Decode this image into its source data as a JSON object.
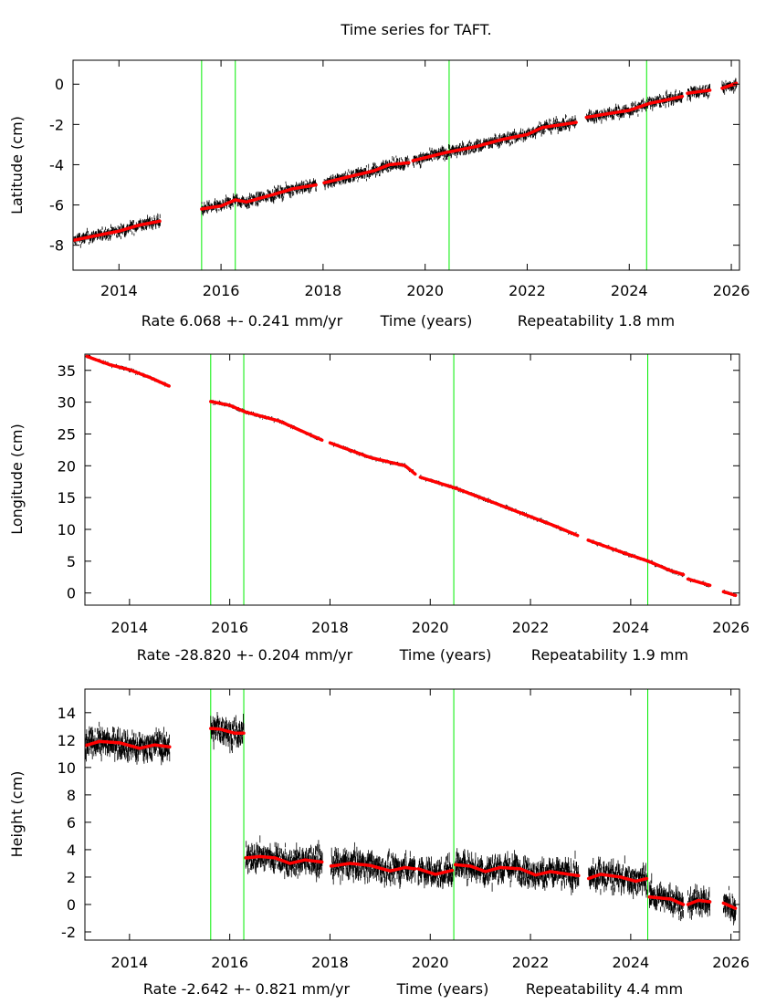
{
  "title": "Time series for TAFT.",
  "colors": {
    "observations": "#000000",
    "model": "#ff0000",
    "events": "#00ee00",
    "frame": "#000000"
  },
  "chart_data": [
    {
      "type": "scatter",
      "ylabel": "Latitude (cm)",
      "xlabel": "Time (years)",
      "rate": "Rate 6.068 +- 0.241 mm/yr",
      "repeatability": "Repeatability 1.8 mm",
      "xlim": [
        2013.1,
        2026.16
      ],
      "ylim": [
        -9.24,
        1.19
      ],
      "xticks": [
        "2014",
        "2016",
        "2018",
        "2020",
        "2022",
        "2024",
        "2026"
      ],
      "yticks": [
        "0",
        "-2",
        "-4",
        "-6",
        "-8"
      ],
      "event_lines": [
        2015.62,
        2016.28,
        2020.47,
        2024.34
      ],
      "scatter_cm": 0.3,
      "model_segments": [
        {
          "x": [
            2013.12,
            2013.5,
            2014.0,
            2014.4,
            2014.81
          ],
          "y": [
            -7.75,
            -7.55,
            -7.3,
            -7.0,
            -6.8
          ]
        },
        {
          "x": [
            2015.62,
            2016.0,
            2016.28,
            2016.5,
            2017.0,
            2017.4,
            2017.87
          ],
          "y": [
            -6.2,
            -6.05,
            -5.75,
            -5.85,
            -5.5,
            -5.2,
            -5.0
          ]
        },
        {
          "x": [
            2018.02,
            2018.5,
            2019.0,
            2019.3,
            2019.69
          ],
          "y": [
            -4.9,
            -4.6,
            -4.3,
            -4.0,
            -3.9
          ]
        },
        {
          "x": [
            2019.76,
            2020.4,
            2021.0,
            2021.5,
            2022.0,
            2022.3,
            2022.96
          ],
          "y": [
            -3.8,
            -3.4,
            -3.1,
            -2.75,
            -2.5,
            -2.15,
            -1.9
          ]
        },
        {
          "x": [
            2023.16,
            2023.5,
            2024.0,
            2024.4,
            2024.7,
            2025.05
          ],
          "y": [
            -1.65,
            -1.5,
            -1.3,
            -0.95,
            -0.8,
            -0.6
          ]
        },
        {
          "x": [
            2025.14,
            2025.58
          ],
          "y": [
            -0.45,
            -0.3
          ]
        },
        {
          "x": [
            2025.82,
            2026.11
          ],
          "y": [
            -0.2,
            0.05
          ]
        }
      ]
    },
    {
      "type": "scatter",
      "ylabel": "Longitude (cm)",
      "xlabel": "Time (years)",
      "rate": "Rate -28.820 +- 0.204 mm/yr",
      "repeatability": "Repeatability 1.9 mm",
      "xlim": [
        2013.11,
        2026.17
      ],
      "ylim": [
        -1.91,
        37.55
      ],
      "xticks": [
        "2014",
        "2016",
        "2018",
        "2020",
        "2022",
        "2024",
        "2026"
      ],
      "yticks": [
        "0",
        "5",
        "10",
        "15",
        "20",
        "25",
        "30",
        "35"
      ],
      "event_lines": [
        2015.62,
        2016.28,
        2020.47,
        2024.34
      ],
      "scatter_cm": 0.3,
      "model_segments": [
        {
          "x": [
            2013.15,
            2013.6,
            2014.0,
            2014.4,
            2014.8
          ],
          "y": [
            37.2,
            35.9,
            35.1,
            33.9,
            32.5
          ]
        },
        {
          "x": [
            2015.62,
            2016.0,
            2016.3,
            2017.0,
            2017.85
          ],
          "y": [
            30.1,
            29.5,
            28.5,
            27.0,
            24.0
          ]
        },
        {
          "x": [
            2018.0,
            2018.8,
            2019.5,
            2019.7
          ],
          "y": [
            23.6,
            21.3,
            20.0,
            18.7
          ]
        },
        {
          "x": [
            2019.8,
            2020.5,
            2021.0,
            2021.5,
            2022.0,
            2022.5,
            2022.95
          ],
          "y": [
            18.2,
            16.5,
            15.0,
            13.5,
            12.0,
            10.5,
            9.0
          ]
        },
        {
          "x": [
            2023.15,
            2023.9,
            2024.35,
            2024.8,
            2025.05
          ],
          "y": [
            8.3,
            6.2,
            5.0,
            3.5,
            2.9
          ]
        },
        {
          "x": [
            2025.14,
            2025.58
          ],
          "y": [
            2.2,
            1.2
          ]
        },
        {
          "x": [
            2025.85,
            2026.1
          ],
          "y": [
            0.2,
            -0.4
          ]
        }
      ]
    },
    {
      "type": "scatter",
      "ylabel": "Height (cm)",
      "xlabel": "Time (years)",
      "rate": "Rate -2.642 +- 0.821 mm/yr",
      "repeatability": "Repeatability 4.4 mm",
      "xlim": [
        2013.11,
        2026.17
      ],
      "ylim": [
        -2.6,
        15.72
      ],
      "xticks": [
        "2014",
        "2016",
        "2018",
        "2020",
        "2022",
        "2024",
        "2026"
      ],
      "yticks": [
        "-2",
        "0",
        "2",
        "4",
        "6",
        "8",
        "10",
        "12",
        "14"
      ],
      "event_lines": [
        2015.62,
        2016.28,
        2020.47,
        2024.34
      ],
      "scatter_cm": 1.0,
      "model_segments": [
        {
          "x": [
            2013.12,
            2013.4,
            2013.8,
            2014.2,
            2014.5,
            2014.8
          ],
          "y": [
            11.6,
            11.9,
            11.8,
            11.4,
            11.65,
            11.5
          ]
        },
        {
          "x": [
            2015.62,
            2015.8,
            2016.1,
            2016.28
          ],
          "y": [
            12.85,
            12.8,
            12.5,
            12.5
          ]
        },
        {
          "x": [
            2016.32,
            2016.6,
            2016.9,
            2017.2,
            2017.5,
            2017.85
          ],
          "y": [
            3.4,
            3.5,
            3.4,
            3.0,
            3.25,
            3.1
          ]
        },
        {
          "x": [
            2018.02,
            2018.4,
            2018.8,
            2019.2,
            2019.5,
            2019.7
          ],
          "y": [
            2.8,
            3.0,
            2.85,
            2.45,
            2.7,
            2.6
          ]
        },
        {
          "x": [
            2019.76,
            2020.1,
            2020.45
          ],
          "y": [
            2.6,
            2.2,
            2.5
          ]
        },
        {
          "x": [
            2020.5,
            2020.8,
            2021.1,
            2021.4,
            2021.8,
            2022.1,
            2022.4,
            2022.96
          ],
          "y": [
            2.9,
            2.8,
            2.4,
            2.7,
            2.6,
            2.15,
            2.4,
            2.1
          ]
        },
        {
          "x": [
            2023.16,
            2023.4,
            2023.8,
            2024.1,
            2024.33
          ],
          "y": [
            1.9,
            2.2,
            2.0,
            1.7,
            1.9
          ]
        },
        {
          "x": [
            2024.37,
            2024.8,
            2025.05
          ],
          "y": [
            0.55,
            0.4,
            0.0
          ]
        },
        {
          "x": [
            2025.14,
            2025.35,
            2025.58
          ],
          "y": [
            0.0,
            0.3,
            0.2
          ]
        },
        {
          "x": [
            2025.85,
            2026.1
          ],
          "y": [
            0.1,
            -0.3
          ]
        }
      ]
    }
  ]
}
